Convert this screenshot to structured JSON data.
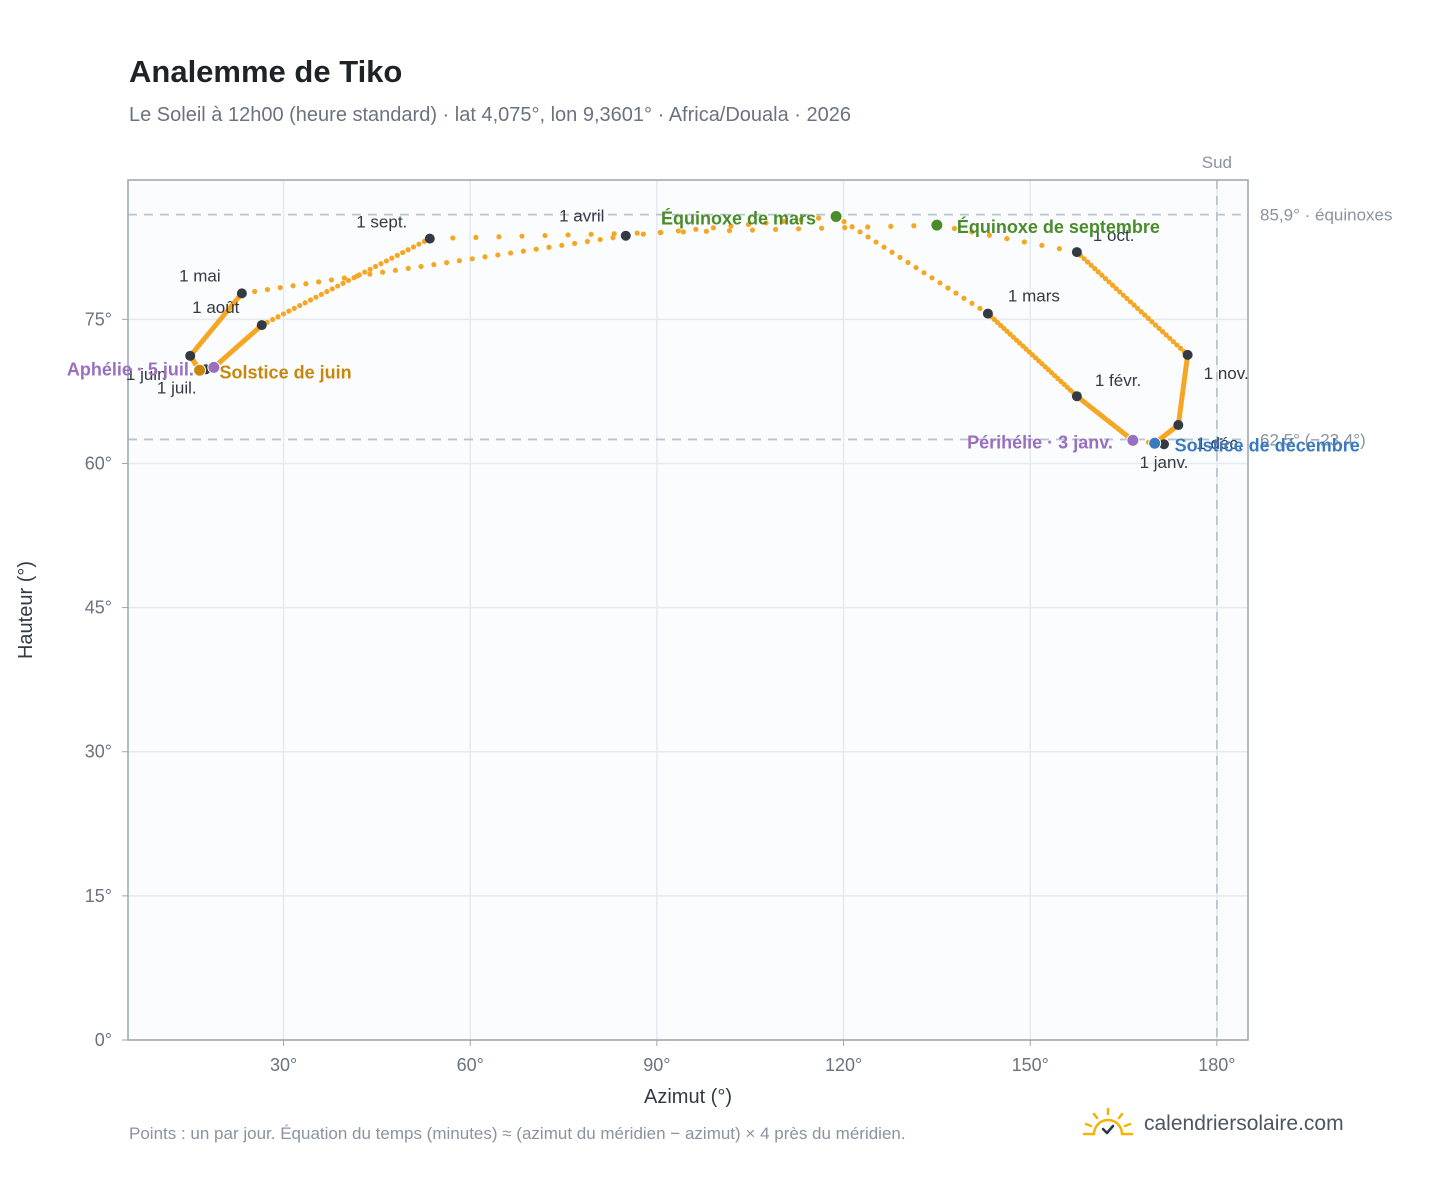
{
  "title": "Analemme de Tiko",
  "subtitle": "Le Soleil à 12h00 (heure standard) · lat 4,075°, lon 9,3601° · Africa/Douala · 2026",
  "footnote": "Points : un par jour. Équation du temps (minutes) ≈ (azimut du méridien − azimut) × 4 près du méridien.",
  "brand": {
    "name": "calendriersolaire.com",
    "logo_icon": "sun-check-icon"
  },
  "chart_data": {
    "type": "scatter",
    "xlabel": "Azimut (°)",
    "ylabel": "Hauteur (°)",
    "xlim": [
      5,
      185
    ],
    "ylim": [
      0,
      89.5
    ],
    "x_ticks": [
      30,
      60,
      90,
      120,
      150,
      180
    ],
    "x_tick_labels": [
      "30°",
      "60°",
      "90°",
      "120°",
      "150°",
      "180°"
    ],
    "y_ticks": [
      0,
      15,
      30,
      45,
      60,
      75
    ],
    "y_tick_labels": [
      "0°",
      "15°",
      "30°",
      "45°",
      "60°",
      "75°"
    ],
    "grid": true,
    "colors": {
      "curve": "#f5a623",
      "month": "#333a44",
      "june": "#c8860a",
      "december": "#3a7bbf",
      "equinox": "#4a8c2a",
      "apsis": "#9b6fc0",
      "reference": "#b9c4cf"
    },
    "reference_lines": [
      {
        "axis": "y",
        "value": 85.9,
        "label": "85,9° · équinoxes"
      },
      {
        "axis": "y",
        "value": 62.5,
        "label": "62,5° (−23,4°)"
      },
      {
        "axis": "x",
        "value": 180,
        "label": "Sud"
      }
    ],
    "daily_path": [
      {
        "date": "01-01",
        "az": 171.5,
        "alt": 62.0
      },
      {
        "date": "01-03",
        "az": 166.5,
        "alt": 62.4
      },
      {
        "date": "02-01",
        "az": 157.5,
        "alt": 67.0
      },
      {
        "date": "03-01",
        "az": 143.2,
        "alt": 75.6
      },
      {
        "date": "03-20",
        "az": 118.8,
        "alt": 85.7
      },
      {
        "date": "04-01",
        "az": 85.0,
        "alt": 83.7
      },
      {
        "date": "05-01",
        "az": 23.3,
        "alt": 77.7
      },
      {
        "date": "06-01",
        "az": 15.0,
        "alt": 71.2
      },
      {
        "date": "06-21",
        "az": 16.5,
        "alt": 69.7
      },
      {
        "date": "07-01",
        "az": 17.5,
        "alt": 69.8
      },
      {
        "date": "07-05",
        "az": 18.8,
        "alt": 70.0
      },
      {
        "date": "08-01",
        "az": 26.5,
        "alt": 74.4
      },
      {
        "date": "09-01",
        "az": 53.5,
        "alt": 83.4
      },
      {
        "date": "09-23",
        "az": 135.0,
        "alt": 84.8
      },
      {
        "date": "10-01",
        "az": 157.5,
        "alt": 82.0
      },
      {
        "date": "11-01",
        "az": 175.3,
        "alt": 71.3
      },
      {
        "date": "12-01",
        "az": 173.8,
        "alt": 64.0
      },
      {
        "date": "12-21",
        "az": 170.0,
        "alt": 62.1
      },
      {
        "date": "12-31",
        "az": 171.5,
        "alt": 62.0
      }
    ],
    "month_markers": [
      {
        "label": "1 janv.",
        "az": 171.5,
        "alt": 62.0
      },
      {
        "label": "1 févr.",
        "az": 157.5,
        "alt": 67.0
      },
      {
        "label": "1 mars",
        "az": 143.2,
        "alt": 75.6
      },
      {
        "label": "1 avril",
        "az": 85.0,
        "alt": 83.7
      },
      {
        "label": "1 mai",
        "az": 23.3,
        "alt": 77.7
      },
      {
        "label": "1 juin",
        "az": 15.0,
        "alt": 71.2
      },
      {
        "label": "1 juil.",
        "az": 17.5,
        "alt": 69.8
      },
      {
        "label": "1 août",
        "az": 26.5,
        "alt": 74.4
      },
      {
        "label": "1 sept.",
        "az": 53.5,
        "alt": 83.4
      },
      {
        "label": "1 oct.",
        "az": 157.5,
        "alt": 82.0
      },
      {
        "label": "1 nov.",
        "az": 175.3,
        "alt": 71.3
      },
      {
        "label": "1 déc.",
        "az": 173.8,
        "alt": 64.0
      }
    ],
    "events": [
      {
        "label": "Solstice de juin",
        "az": 16.5,
        "alt": 69.7,
        "color": "#c8860a"
      },
      {
        "label": "Aphélie · 5 juil.",
        "az": 18.8,
        "alt": 70.0,
        "color": "#9b6fc0"
      },
      {
        "label": "Équinoxe de mars",
        "az": 118.8,
        "alt": 85.7,
        "color": "#4a8c2a"
      },
      {
        "label": "Équinoxe de septembre",
        "az": 135.0,
        "alt": 84.8,
        "color": "#4a8c2a"
      },
      {
        "label": "Périhélie · 3 janv.",
        "az": 166.5,
        "alt": 62.4,
        "color": "#9b6fc0"
      },
      {
        "label": "Solstice de décembre",
        "az": 170.0,
        "alt": 62.1,
        "color": "#3a7bbf"
      }
    ]
  }
}
